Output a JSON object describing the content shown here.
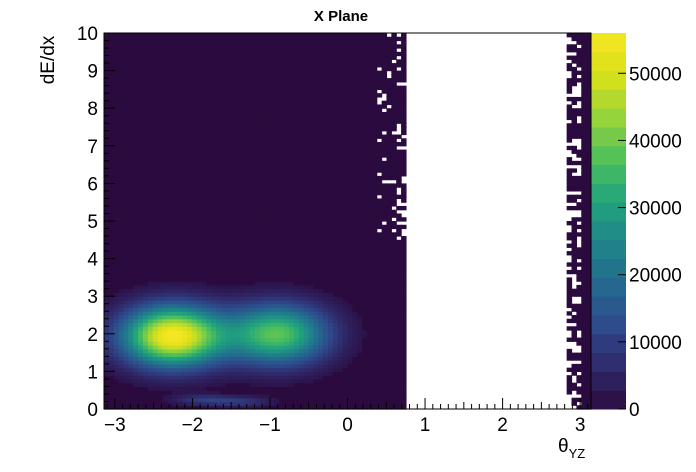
{
  "chart_data": {
    "type": "heatmap",
    "title": "X Plane",
    "xlabel": {
      "base": "θ",
      "sub": "YZ"
    },
    "ylabel": "dE/dx",
    "xlim": [
      -3.14,
      3.14
    ],
    "ylim": [
      0,
      10
    ],
    "x_ticks": [
      -3,
      -2,
      -1,
      0,
      1,
      2,
      3
    ],
    "y_ticks": [
      0,
      1,
      2,
      3,
      4,
      5,
      6,
      7,
      8,
      9,
      10
    ],
    "z_range": [
      0,
      56000
    ],
    "z_ticks": [
      0,
      10000,
      20000,
      30000,
      40000,
      50000
    ],
    "colormap": "viridis",
    "background_color": "#2b0b3f",
    "empty_region_x": [
      0.75,
      2.8
    ],
    "blobs": [
      {
        "x": -2.25,
        "y": 1.95,
        "peak": 56000
      },
      {
        "x": -0.9,
        "y": 2.0,
        "peak": 38000
      },
      {
        "x": -1.85,
        "y": 0.25,
        "peak": 9000
      },
      {
        "x": -1.35,
        "y": 0.2,
        "peak": 8000
      }
    ]
  }
}
